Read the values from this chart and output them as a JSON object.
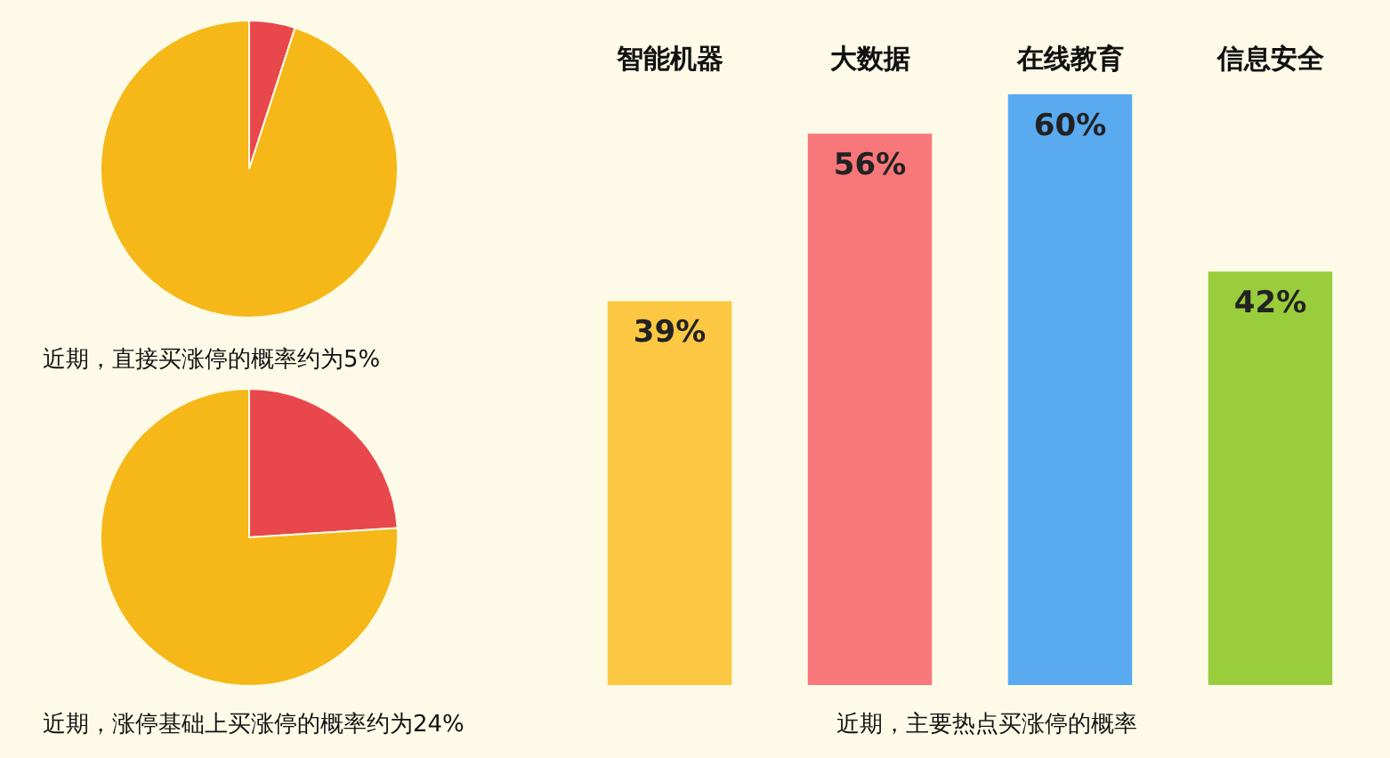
{
  "chart_data": [
    {
      "type": "pie",
      "categories": [
        null,
        null
      ],
      "values": [
        5,
        95
      ],
      "colors": [
        "#e8474c",
        "#f5b818"
      ],
      "legend": false,
      "annotations": [
        "近期，直接买涨停的概率约为5%"
      ]
    },
    {
      "type": "pie",
      "categories": [
        null,
        null
      ],
      "values": [
        24,
        76
      ],
      "colors": [
        "#e8474c",
        "#f5b818"
      ],
      "legend": false,
      "annotations": [
        "近期，涨停基础上买涨停的概率约为24%"
      ]
    },
    {
      "type": "bar",
      "categories": [
        "智能机器",
        "大数据",
        "在线教育",
        "信息安全"
      ],
      "values": [
        39,
        56,
        60,
        42
      ],
      "colors": [
        "#fcc844",
        "#f8777a",
        "#5aaaf0",
        "#9acd3c"
      ],
      "value_labels": [
        "39%",
        "56%",
        "60%",
        "42%"
      ],
      "legend": false,
      "grid": false,
      "tick_labels": "x",
      "annotations": [
        "近期，主要热点买涨停的概率"
      ]
    }
  ]
}
